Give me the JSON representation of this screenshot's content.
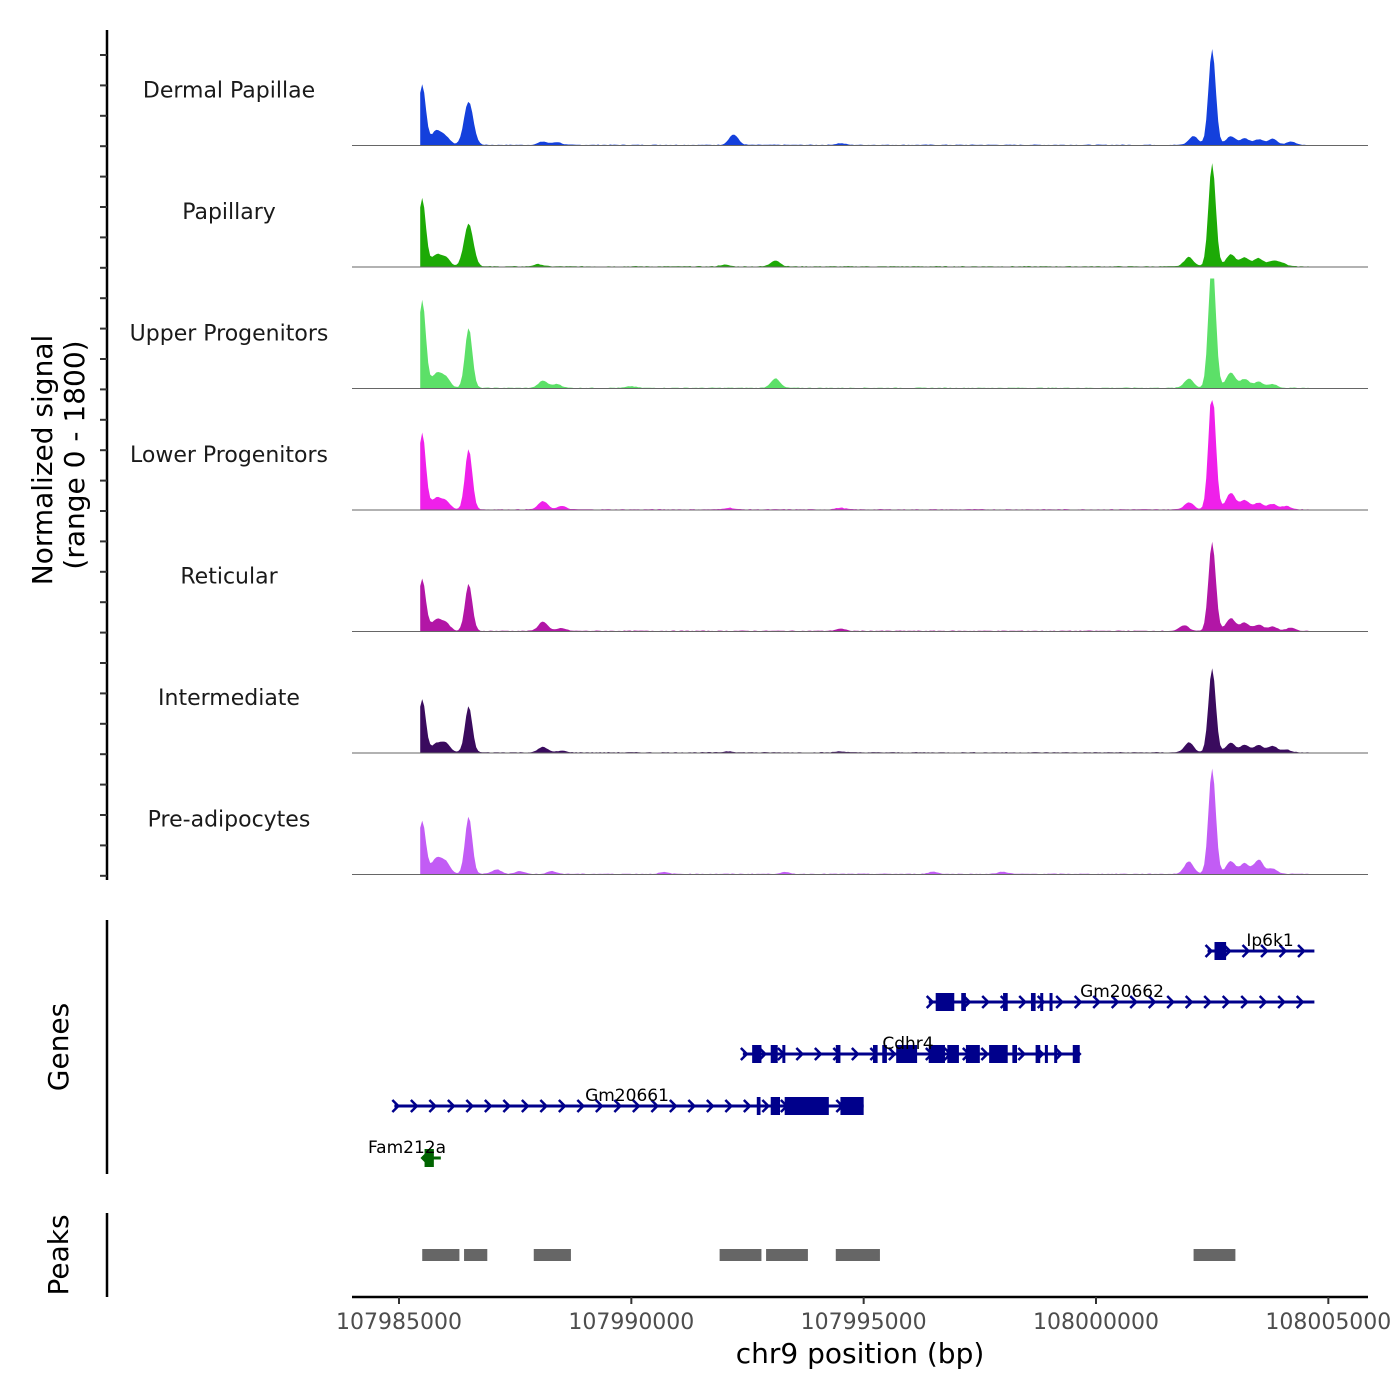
{
  "chart_data": {
    "type": "area",
    "title": "",
    "xlabel": "chr9 position (bp)",
    "ylabel": "Normalized signal\n(range 0 - 1800)",
    "ylabel_lines": [
      "Normalized signal",
      "(range 0 - 1800)"
    ],
    "ylim": [
      0,
      1800
    ],
    "xlim": [
      107984000,
      108005850
    ],
    "x_ticks": [
      107985000,
      107990000,
      107995000,
      108000000,
      108005000
    ],
    "x_tick_labels": [
      "107985000",
      "107990000",
      "107995000",
      "108000000",
      "108005000"
    ],
    "grid": false,
    "series": [
      {
        "name": "Dermal Papillae",
        "color": "#1440DC",
        "peaks": [
          [
            107985100,
            400
          ],
          [
            107985500,
            1100
          ],
          [
            107985800,
            250
          ],
          [
            107986000,
            150
          ],
          [
            107986500,
            790
          ],
          [
            107988100,
            60
          ],
          [
            107988400,
            50
          ],
          [
            107992200,
            190
          ],
          [
            107994500,
            30
          ],
          [
            108002100,
            160
          ],
          [
            108002500,
            1740
          ],
          [
            108002900,
            160
          ],
          [
            108003200,
            120
          ],
          [
            108003500,
            100
          ],
          [
            108003800,
            110
          ],
          [
            108004200,
            60
          ]
        ]
      },
      {
        "name": "Papillary",
        "color": "#1DAA06",
        "peaks": [
          [
            107985100,
            680
          ],
          [
            107985500,
            1240
          ],
          [
            107985800,
            200
          ],
          [
            107986000,
            160
          ],
          [
            107986500,
            780
          ],
          [
            107988000,
            40
          ],
          [
            107992000,
            30
          ],
          [
            107993100,
            110
          ],
          [
            108002000,
            170
          ],
          [
            108002500,
            1880
          ],
          [
            108002900,
            220
          ],
          [
            108003200,
            160
          ],
          [
            108003500,
            150
          ],
          [
            108003800,
            100
          ],
          [
            108004000,
            60
          ]
        ]
      },
      {
        "name": "Upper Progenitors",
        "color": "#5CE068",
        "peaks": [
          [
            107985100,
            420
          ],
          [
            107985500,
            1600
          ],
          [
            107985800,
            250
          ],
          [
            107986000,
            200
          ],
          [
            107986500,
            1100
          ],
          [
            107988100,
            130
          ],
          [
            107988400,
            70
          ],
          [
            107990000,
            30
          ],
          [
            107993100,
            170
          ],
          [
            108002000,
            170
          ],
          [
            108002500,
            2350
          ],
          [
            108002900,
            280
          ],
          [
            108003200,
            160
          ],
          [
            108003500,
            110
          ],
          [
            108003800,
            70
          ]
        ]
      },
      {
        "name": "Lower Progenitors",
        "color": "#EF20EA",
        "peaks": [
          [
            107985100,
            470
          ],
          [
            107985500,
            1400
          ],
          [
            107985800,
            200
          ],
          [
            107986000,
            150
          ],
          [
            107986500,
            1100
          ],
          [
            107988100,
            150
          ],
          [
            107988500,
            60
          ],
          [
            107992100,
            30
          ],
          [
            107994500,
            30
          ],
          [
            108002000,
            130
          ],
          [
            108002500,
            2180
          ],
          [
            108002900,
            300
          ],
          [
            108003200,
            170
          ],
          [
            108003500,
            120
          ],
          [
            108003800,
            100
          ],
          [
            108004100,
            60
          ]
        ]
      },
      {
        "name": "Reticular",
        "color": "#B216A6",
        "peaks": [
          [
            107985100,
            560
          ],
          [
            107985500,
            950
          ],
          [
            107985800,
            200
          ],
          [
            107986000,
            150
          ],
          [
            107986500,
            860
          ],
          [
            107988100,
            170
          ],
          [
            107988500,
            50
          ],
          [
            107994500,
            40
          ],
          [
            108001900,
            100
          ],
          [
            108002500,
            1620
          ],
          [
            108002900,
            230
          ],
          [
            108003200,
            150
          ],
          [
            108003500,
            110
          ],
          [
            108003800,
            80
          ],
          [
            108004200,
            60
          ]
        ]
      },
      {
        "name": "Intermediate",
        "color": "#3A0B5E",
        "peaks": [
          [
            107985100,
            560
          ],
          [
            107985500,
            970
          ],
          [
            107985800,
            150
          ],
          [
            107986000,
            170
          ],
          [
            107986500,
            840
          ],
          [
            107988100,
            100
          ],
          [
            107988500,
            30
          ],
          [
            107992100,
            20
          ],
          [
            107994500,
            20
          ],
          [
            108002000,
            180
          ],
          [
            108002500,
            1530
          ],
          [
            108002900,
            170
          ],
          [
            108003200,
            130
          ],
          [
            108003500,
            130
          ],
          [
            108003800,
            120
          ],
          [
            108004100,
            50
          ]
        ]
      },
      {
        "name": "Pre-adipocytes",
        "color": "#C25CF5",
        "peaks": [
          [
            107985100,
            700
          ],
          [
            107985500,
            970
          ],
          [
            107985800,
            270
          ],
          [
            107986000,
            220
          ],
          [
            107986500,
            1040
          ],
          [
            107987100,
            80
          ],
          [
            107987600,
            50
          ],
          [
            107988300,
            50
          ],
          [
            107990700,
            30
          ],
          [
            107993300,
            30
          ],
          [
            107996500,
            40
          ],
          [
            107998000,
            40
          ],
          [
            108002000,
            230
          ],
          [
            108002500,
            1920
          ],
          [
            108002900,
            230
          ],
          [
            108003200,
            190
          ],
          [
            108003500,
            260
          ],
          [
            108003800,
            100
          ]
        ]
      }
    ],
    "genes": [
      {
        "name": "Ip6k1",
        "start": 108002400,
        "end": 108004700,
        "strand": "+",
        "color": "#00008B",
        "row": 0,
        "exons": [
          [
            108002550,
            108002800
          ]
        ]
      },
      {
        "name": "Gm20662",
        "start": 107996400,
        "end": 108004700,
        "strand": "+",
        "color": "#00008B",
        "row": 1,
        "exons": [
          [
            107996550,
            107996950
          ],
          [
            107997100,
            107997200
          ],
          [
            107998000,
            107998100
          ],
          [
            107998600,
            107998700
          ],
          [
            107998800,
            107998850
          ],
          [
            107999000,
            107999030
          ]
        ]
      },
      {
        "name": "Cdhr4",
        "start": 107992400,
        "end": 107999650,
        "strand": "+",
        "color": "#00008B",
        "row": 2,
        "exons": [
          [
            107992600,
            107992800
          ],
          [
            107993000,
            107993150
          ],
          [
            107993250,
            107993300
          ],
          [
            107994400,
            107994500
          ],
          [
            107995200,
            107995300
          ],
          [
            107995400,
            107995500
          ],
          [
            107995700,
            107996150
          ],
          [
            107996400,
            107996750
          ],
          [
            107996800,
            107997050
          ],
          [
            107997200,
            107997500
          ],
          [
            107997700,
            107998100
          ],
          [
            107998200,
            107998300
          ],
          [
            107998700,
            107998800
          ],
          [
            107998900,
            107998950
          ],
          [
            107999100,
            107999150
          ],
          [
            107999500,
            107999650
          ]
        ]
      },
      {
        "name": "Gm20661",
        "start": 107984900,
        "end": 107995000,
        "strand": "+",
        "color": "#00008B",
        "row": 3,
        "exons": [
          [
            107992700,
            107992780
          ],
          [
            107993000,
            107993200
          ],
          [
            107993300,
            107994250
          ],
          [
            107994500,
            107995000
          ]
        ]
      },
      {
        "name": "Fam212a",
        "start": 107985500,
        "end": 107985900,
        "strand": "-",
        "color": "#006400",
        "row": 4,
        "exons": [
          [
            107985550,
            107985750
          ]
        ]
      }
    ],
    "peaks_track": [
      [
        107985500,
        107986300
      ],
      [
        107986400,
        107986900
      ],
      [
        107987900,
        107988700
      ],
      [
        107991900,
        107992800
      ],
      [
        107992900,
        107993800
      ],
      [
        107994400,
        107995350
      ],
      [
        108002100,
        108003000
      ]
    ],
    "panel_labels": {
      "genes": "Genes",
      "peaks": "Peaks"
    }
  }
}
